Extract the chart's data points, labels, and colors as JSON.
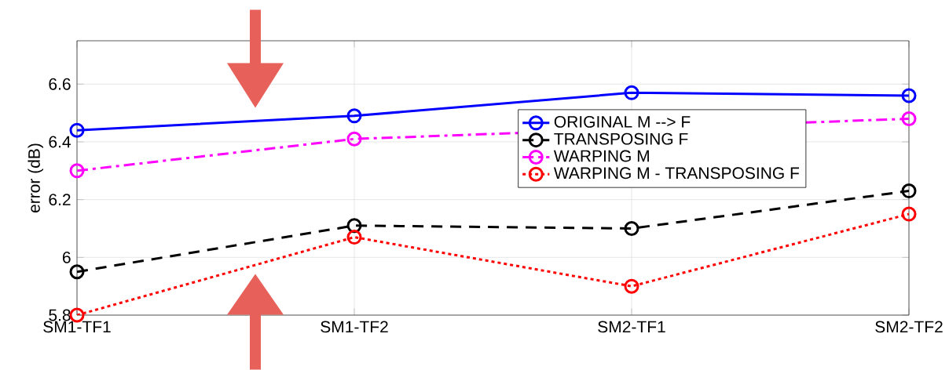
{
  "chart_data": {
    "type": "line",
    "ylabel": "error (dB)",
    "categories": [
      "SM1-TF1",
      "SM1-TF2",
      "SM2-TF1",
      "SM2-TF2"
    ],
    "ylim": [
      5.8,
      6.75
    ],
    "yticks": [
      5.8,
      6,
      6.2,
      6.4,
      6.6
    ],
    "grid": true,
    "legend": "right",
    "marker": "circle",
    "series": [
      {
        "name": "ORIGINAL M --> F",
        "color": "#0000ff",
        "line_style": "solid",
        "values": [
          6.44,
          6.49,
          6.57,
          6.56
        ]
      },
      {
        "name": "TRANSPOSING F",
        "color": "#000000",
        "line_style": "dashed",
        "values": [
          5.95,
          6.11,
          6.1,
          6.23
        ]
      },
      {
        "name": "WARPING M",
        "color": "#ff00ff",
        "line_style": "dashdot",
        "values": [
          6.3,
          6.41,
          null,
          6.48
        ]
      },
      {
        "name": "WARPING M - TRANSPOSING F",
        "color": "#ff0000",
        "line_style": "dotted",
        "values": [
          5.8,
          6.07,
          5.9,
          6.15
        ]
      }
    ]
  }
}
